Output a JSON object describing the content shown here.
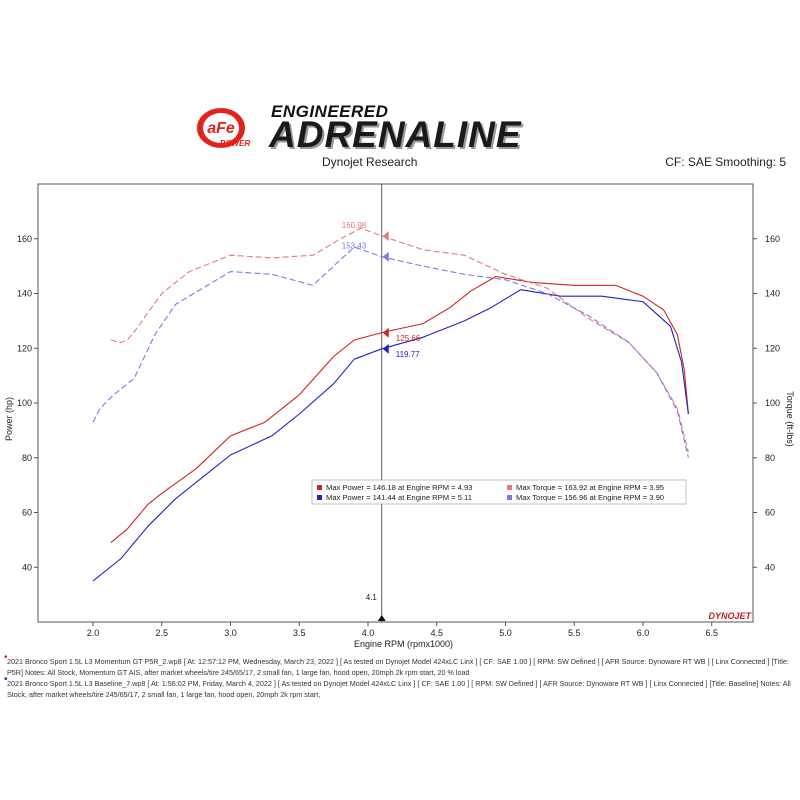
{
  "brand": {
    "badge_text": "aFe",
    "badge_subtext": "POWER",
    "tagline_top": "ENGINEERED",
    "tagline_main": "ADRENALINE"
  },
  "header": {
    "title": "Dynojet Research",
    "cf_info": "CF: SAE Smoothing: 5"
  },
  "chart_data": {
    "type": "line",
    "xlabel": "Engine RPM (rpmx1000)",
    "ylabel_left": "Power (hp)",
    "ylabel_right": "Torque (ft-lbs)",
    "xlim": [
      1.6,
      6.8
    ],
    "ylim": [
      20,
      180
    ],
    "x_ticks": [
      "2.0",
      "2.5",
      "3.0",
      "3.5",
      "4.0",
      "4.5",
      "5.0",
      "5.5",
      "6.0",
      "6.5"
    ],
    "y_ticks": [
      "40",
      "60",
      "80",
      "100",
      "120",
      "140",
      "160"
    ],
    "grid": false,
    "cursor": {
      "x": 4.1,
      "label": "4.1"
    },
    "annotations": [
      {
        "text": "160.98",
        "x": 4.1,
        "y": 160.98,
        "color": "#e87878"
      },
      {
        "text": "153.43",
        "x": 4.1,
        "y": 153.43,
        "color": "#7a7ae8"
      },
      {
        "text": "125.66",
        "x": 4.1,
        "y": 125.66,
        "color": "#d22222"
      },
      {
        "text": "119.77",
        "x": 4.1,
        "y": 119.77,
        "color": "#2222c8"
      }
    ],
    "legend_items": [
      {
        "text": "Max Power = 146.18 at Engine RPM = 4.93",
        "color": "#d22222"
      },
      {
        "text": "Max Torque = 163.92 at Engine RPM = 3.95",
        "color": "#e87878"
      },
      {
        "text": "Max Power = 141.44 at Engine RPM = 5.11",
        "color": "#2222c8"
      },
      {
        "text": "Max Torque = 156.96 at Engine RPM = 3.90",
        "color": "#7a7ae8"
      }
    ],
    "series": [
      {
        "kind": "power",
        "color": "#d22222",
        "dashed": false,
        "x": [
          2.13,
          2.25,
          2.4,
          2.5,
          2.75,
          3.0,
          3.25,
          3.5,
          3.75,
          3.9,
          4.1,
          4.4,
          4.6,
          4.75,
          4.93,
          5.2,
          5.5,
          5.8,
          6.0,
          6.15,
          6.25,
          6.3,
          6.33
        ],
        "y": [
          49,
          54,
          63,
          67,
          76,
          88,
          93,
          103,
          117,
          123,
          125.7,
          129,
          135,
          141,
          146.2,
          144,
          143,
          143,
          139,
          134,
          125,
          112,
          96
        ]
      },
      {
        "kind": "power",
        "color": "#2222c8",
        "dashed": false,
        "x": [
          2.0,
          2.2,
          2.4,
          2.6,
          2.8,
          3.0,
          3.3,
          3.5,
          3.75,
          3.9,
          4.1,
          4.4,
          4.7,
          4.9,
          5.11,
          5.4,
          5.7,
          6.0,
          6.2,
          6.28,
          6.33
        ],
        "y": [
          35,
          43,
          55,
          65,
          73,
          81,
          88,
          96,
          107,
          116,
          119.8,
          124,
          130,
          135,
          141.4,
          139,
          139,
          137,
          128,
          115,
          96
        ]
      },
      {
        "kind": "torque",
        "color": "#e87878",
        "dashed": true,
        "x": [
          2.13,
          2.2,
          2.25,
          2.3,
          2.4,
          2.5,
          2.7,
          3.0,
          3.3,
          3.6,
          3.8,
          3.95,
          4.1,
          4.4,
          4.7,
          5.0,
          5.3,
          5.6,
          5.9,
          6.1,
          6.25,
          6.33
        ],
        "y": [
          123,
          122,
          123,
          126,
          133,
          140,
          148,
          154,
          153,
          154,
          160,
          163.9,
          161,
          156,
          154,
          147,
          142,
          131,
          122,
          111,
          98,
          82
        ]
      },
      {
        "kind": "torque",
        "color": "#7a7ae8",
        "dashed": true,
        "x": [
          2.0,
          2.05,
          2.15,
          2.3,
          2.45,
          2.6,
          2.8,
          3.0,
          3.3,
          3.6,
          3.75,
          3.9,
          4.1,
          4.4,
          4.7,
          5.0,
          5.3,
          5.6,
          5.9,
          6.1,
          6.25,
          6.33
        ],
        "y": [
          93,
          98,
          103,
          109,
          125,
          136,
          142,
          148,
          147,
          143,
          150,
          157.0,
          153.4,
          150,
          147,
          145,
          140,
          132,
          122,
          111,
          97,
          80
        ]
      }
    ]
  },
  "footer": {
    "line1": "2021 Bronco Sport 1.5L L3 Momentum GT P5R_2.wp8 [ At: 12:57:12 PM, Wednesday, March 23, 2022 ] [ As tested on Dynojet Model 424xLC Linx ] [ CF: SAE 1.00 ] [ RPM: SW Defined ] [ AFR Source: Dynoware RT WB ] [ Linx Connected ] [Title: P5R]  Notes: All Stock, Momentum GT AIS, after market wheels/tire 245/65/17, 2 small fan, 1 large fan, hood open,  20mph 2k rpm start, 20 % load",
    "line2": "2021 Bronco Sport 1.5L L3 Baseline_7.wp8 [ At: 1:56:02 PM, Friday, March 4, 2022 ] [ As tested on Dynojet Model 424xLC Linx ] [ CF: SAE 1.00 ] [ RPM: SW Defined ] [ AFR Source: Dynoware RT WB ] [ Linx Connected ] [Title: Baseline]  Notes: All Stock, after market wheels/tire 245/65/17, 2 small fan, 1 large fan, hood open,  20mph 2k rpm start,",
    "watermark": "DYNOJET"
  },
  "colors": {
    "run1_power": "#d22222",
    "run1_torque": "#e87878",
    "run2_power": "#2222c8",
    "run2_torque": "#7a7ae8"
  }
}
